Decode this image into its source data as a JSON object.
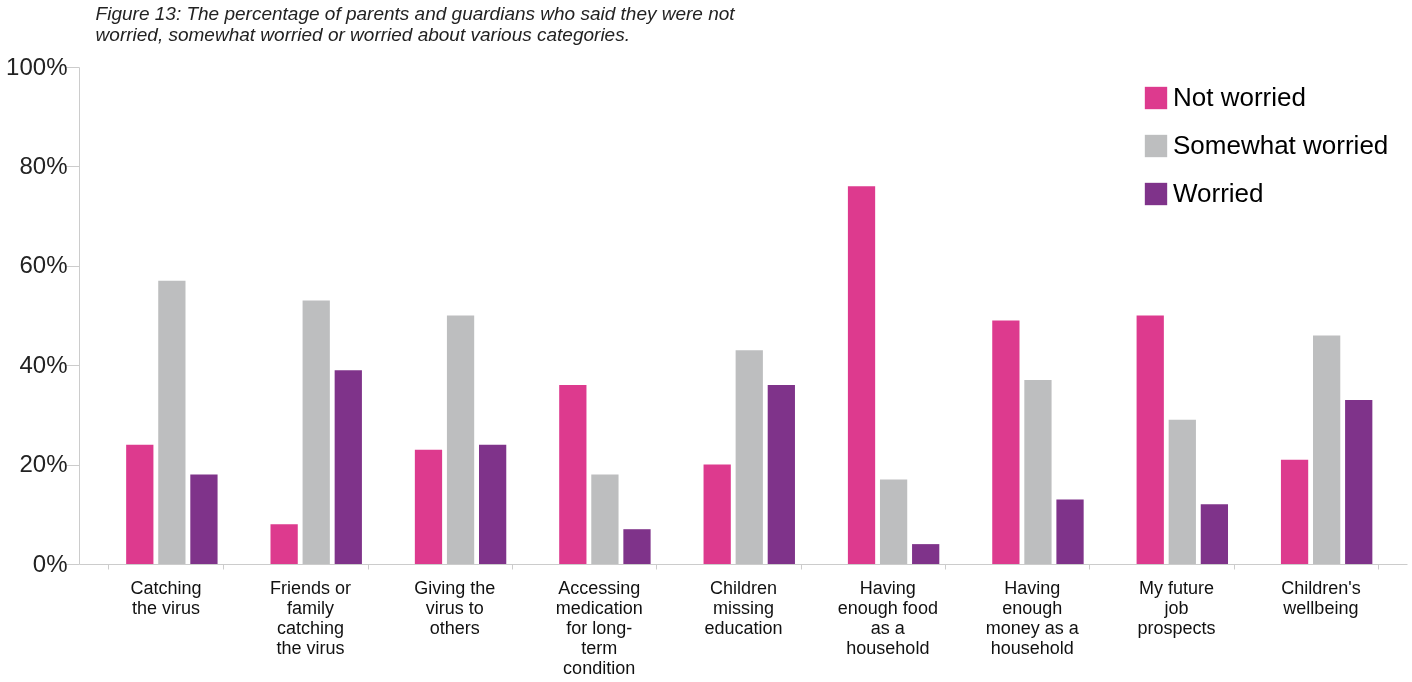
{
  "chart_data": {
    "type": "bar",
    "title": "Figure 13: The percentage of parents and guardians who said they were not worried, somewhat worried or worried about various categories.",
    "categories": [
      "Catching the virus",
      "Friends or family catching the virus",
      "Giving the virus to others",
      "Accessing medication for long-term condition",
      "Children missing education",
      "Having enough food as a household",
      "Having enough money as a household",
      "My future job prospects",
      "Children's wellbeing"
    ],
    "series": [
      {
        "name": "Not worried",
        "color": "#dd3a8e",
        "values": [
          24,
          8,
          23,
          36,
          20,
          76,
          49,
          50,
          21
        ]
      },
      {
        "name": "Somewhat worried",
        "color": "#bdbebf",
        "values": [
          57,
          53,
          50,
          18,
          43,
          17,
          37,
          29,
          46
        ]
      },
      {
        "name": "Worried",
        "color": "#7f338a",
        "values": [
          18,
          39,
          24,
          7,
          36,
          4,
          13,
          12,
          33
        ]
      }
    ],
    "ylim": [
      0,
      100
    ],
    "yticks": [
      {
        "value": 0,
        "label": "0%"
      },
      {
        "value": 20,
        "label": "20%"
      },
      {
        "value": 40,
        "label": "40%"
      },
      {
        "value": 60,
        "label": "60%"
      },
      {
        "value": 80,
        "label": "80%"
      },
      {
        "value": 100,
        "label": "100%"
      }
    ],
    "grid": false,
    "legend": "top right"
  }
}
